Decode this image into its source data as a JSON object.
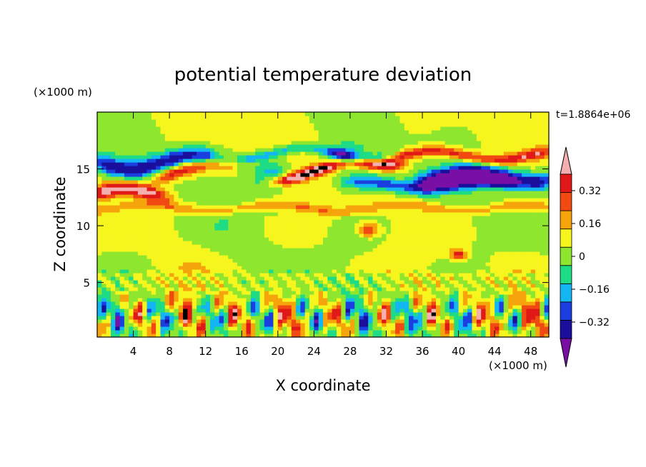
{
  "chart_data": {
    "type": "heatmap",
    "title": "potential temperature deviation",
    "xlabel": "X coordinate",
    "ylabel": "Z coordinate",
    "x_unit": "(×1000 m)",
    "y_unit": "(×1000 m)",
    "time_label": "t=1.8864e+06",
    "xlim": [
      0,
      50
    ],
    "ylim": [
      0.2,
      20
    ],
    "x_ticks": [
      4,
      8,
      12,
      16,
      20,
      24,
      28,
      32,
      36,
      40,
      44,
      48
    ],
    "y_ticks": [
      5,
      10,
      15
    ],
    "colorbar": {
      "levels": [
        -0.4,
        -0.32,
        -0.24,
        -0.16,
        -0.08,
        0,
        0.08,
        0.16,
        0.24,
        0.32,
        0.4
      ],
      "tick_labels": [
        "0.32",
        "0.16",
        "0",
        "−0.16",
        "−0.32"
      ],
      "tick_values": [
        0.32,
        0.16,
        0,
        -0.16,
        -0.32
      ],
      "colors": [
        "#7a0fa6",
        "#1a0e9c",
        "#1a3ee0",
        "#13b6f2",
        "#1edc86",
        "#8ee62e",
        "#f6f61e",
        "#f5a40c",
        "#f04a12",
        "#e01818",
        "#f4b0b0"
      ],
      "extend": "both"
    },
    "features": [
      {
        "type": "band",
        "zc": 15.6,
        "thick": 1.6,
        "value": -0.36,
        "x_from": 0,
        "x_to": 13,
        "wavy": 0.6
      },
      {
        "type": "band",
        "zc": 14.3,
        "thick": 1.6,
        "value": -0.42,
        "x_from": 36,
        "x_to": 50,
        "wavy": 0.4
      },
      {
        "type": "band",
        "zc": 13.6,
        "thick": 1.2,
        "value": -0.28,
        "x_from": 28,
        "x_to": 45,
        "wavy": 0.3
      },
      {
        "type": "band",
        "zc": 16.4,
        "thick": 0.8,
        "value": -0.2,
        "x_from": 16,
        "x_to": 32,
        "wavy": 0.5
      },
      {
        "type": "band",
        "zc": 12.8,
        "thick": 1.4,
        "value": 0.38,
        "x_from": 0,
        "x_to": 7,
        "wavy": 0.5
      },
      {
        "type": "band",
        "zc": 14.4,
        "thick": 1.0,
        "value": 0.42,
        "x_from": 20,
        "x_to": 33,
        "wavy": 0.4,
        "slope": 0.1
      },
      {
        "type": "band",
        "zc": 14.8,
        "thick": 1.2,
        "value": 0.3,
        "x_from": 7,
        "x_to": 14,
        "wavy": 0.6
      },
      {
        "type": "band",
        "zc": 16.2,
        "thick": 0.9,
        "value": 0.28,
        "x_from": 33,
        "x_to": 50,
        "wavy": 0.4
      },
      {
        "type": "band",
        "zc": 11.6,
        "thick": 0.8,
        "value": 0.14,
        "x_from": 0,
        "x_to": 50,
        "wavy": 0.3
      },
      {
        "type": "spot",
        "x": 30,
        "z": 9.7,
        "r": 0.6,
        "value": 0.3
      },
      {
        "type": "spot",
        "x": 40,
        "z": 7.5,
        "r": 0.5,
        "value": 0.3
      },
      {
        "type": "spot",
        "x": 19.5,
        "z": 14.6,
        "r": 1.2,
        "value": -0.22
      },
      {
        "type": "spot",
        "x": 27.5,
        "z": 16.0,
        "r": 1.0,
        "value": -0.3
      }
    ]
  }
}
